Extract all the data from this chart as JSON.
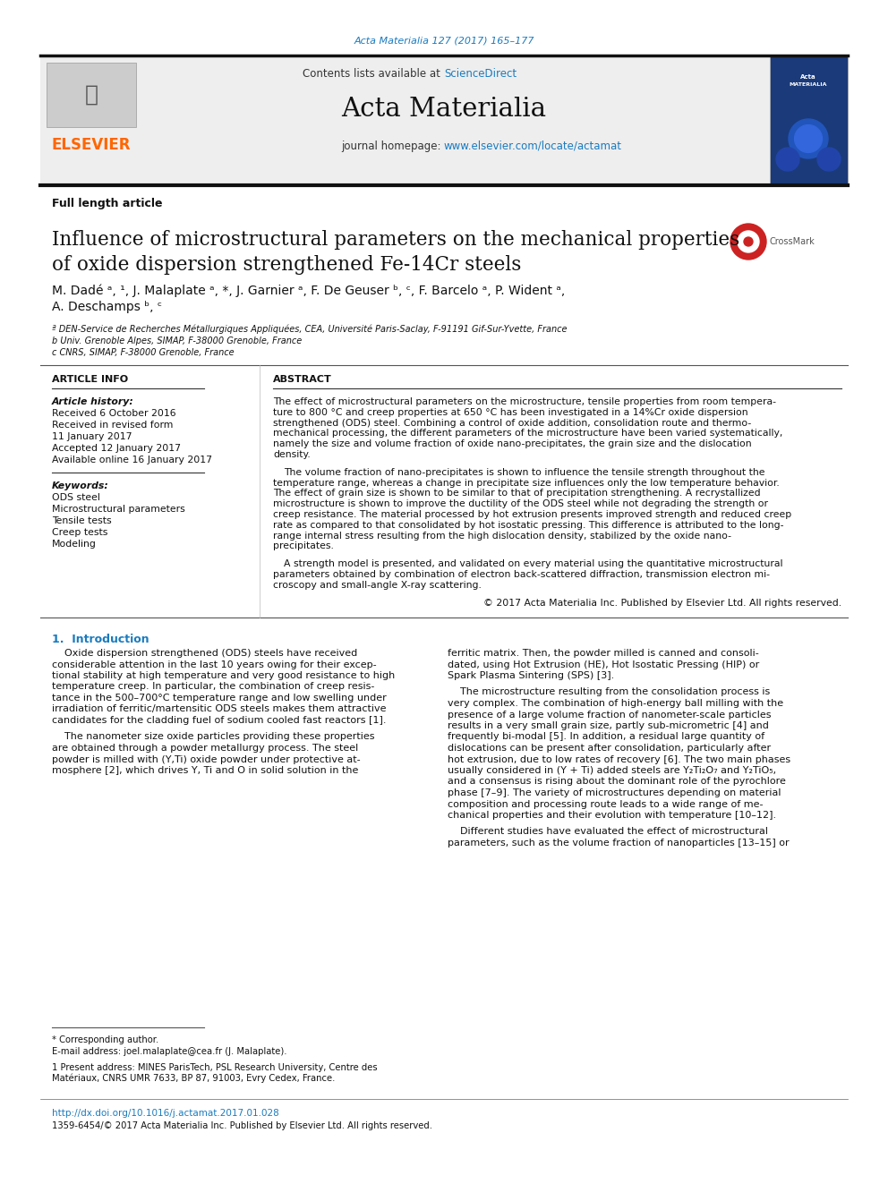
{
  "page_title": "Acta Materialia 127 (2017) 165–177",
  "journal_name": "Acta Materialia",
  "contents_text": "Contents lists available at ScienceDirect",
  "sciencedirect_text": "ScienceDirect",
  "homepage_url": "www.elsevier.com/locate/actamat",
  "article_type": "Full length article",
  "paper_title_line1": "Influence of microstructural parameters on the mechanical properties",
  "paper_title_line2": "of oxide dispersion strengthened Fe-14Cr steels",
  "affil_a": "ª DEN-Service de Recherches Métallurgiques Appliquées, CEA, Université Paris-Saclay, F-91191 Gif-Sur-Yvette, France",
  "affil_b": "b Univ. Grenoble Alpes, SIMAP, F-38000 Grenoble, France",
  "affil_c": "c CNRS, SIMAP, F-38000 Grenoble, France",
  "keywords": [
    "ODS steel",
    "Microstructural parameters",
    "Tensile tests",
    "Creep tests",
    "Modeling"
  ],
  "abstract_lines": [
    "The effect of microstructural parameters on the microstructure, tensile properties from room tempera-",
    "ture to 800 °C and creep properties at 650 °C has been investigated in a 14%Cr oxide dispersion",
    "strengthened (ODS) steel. Combining a control of oxide addition, consolidation route and thermo-",
    "mechanical processing, the different parameters of the microstructure have been varied systematically,",
    "namely the size and volume fraction of oxide nano-precipitates, the grain size and the dislocation",
    "density."
  ],
  "abstract_lines2": [
    "The volume fraction of nano-precipitates is shown to influence the tensile strength throughout the",
    "temperature range, whereas a change in precipitate size influences only the low temperature behavior.",
    "The effect of grain size is shown to be similar to that of precipitation strengthening. A recrystallized",
    "microstructure is shown to improve the ductility of the ODS steel while not degrading the strength or",
    "creep resistance. The material processed by hot extrusion presents improved strength and reduced creep",
    "rate as compared to that consolidated by hot isostatic pressing. This difference is attributed to the long-",
    "range internal stress resulting from the high dislocation density, stabilized by the oxide nano-",
    "precipitates."
  ],
  "abstract_lines3": [
    "A strength model is presented, and validated on every material using the quantitative microstructural",
    "parameters obtained by combination of electron back-scattered diffraction, transmission electron mi-",
    "croscopy and small-angle X-ray scattering."
  ],
  "abstract_copyright": "© 2017 Acta Materialia Inc. Published by Elsevier Ltd. All rights reserved.",
  "intro_col1_lines1": [
    "Oxide dispersion strengthened (ODS) steels have received",
    "considerable attention in the last 10 years owing for their excep-",
    "tional stability at high temperature and very good resistance to high",
    "temperature creep. In particular, the combination of creep resis-",
    "tance in the 500–700°C temperature range and low swelling under",
    "irradiation of ferritic/martensitic ODS steels makes them attractive",
    "candidates for the cladding fuel of sodium cooled fast reactors [1]."
  ],
  "intro_col1_lines2": [
    "The nanometer size oxide particles providing these properties",
    "are obtained through a powder metallurgy process. The steel",
    "powder is milled with (Y,Ti) oxide powder under protective at-",
    "mosphere [2], which drives Y, Ti and O in solid solution in the"
  ],
  "intro_col2_lines1": [
    "ferritic matrix. Then, the powder milled is canned and consoli-",
    "dated, using Hot Extrusion (HE), Hot Isostatic Pressing (HIP) or",
    "Spark Plasma Sintering (SPS) [3]."
  ],
  "intro_col2_lines2": [
    "The microstructure resulting from the consolidation process is",
    "very complex. The combination of high-energy ball milling with the",
    "presence of a large volume fraction of nanometer-scale particles",
    "results in a very small grain size, partly sub-micrometric [4] and",
    "frequently bi-modal [5]. In addition, a residual large quantity of",
    "dislocations can be present after consolidation, particularly after",
    "hot extrusion, due to low rates of recovery [6]. The two main phases",
    "usually considered in (Y + Ti) added steels are Y₂Ti₂O₇ and Y₂TiO₅,",
    "and a consensus is rising about the dominant role of the pyrochlore",
    "phase [7–9]. The variety of microstructures depending on material",
    "composition and processing route leads to a wide range of me-",
    "chanical properties and their evolution with temperature [10–12]."
  ],
  "intro_col2_lines3": [
    "Different studies have evaluated the effect of microstructural",
    "parameters, such as the volume fraction of nanoparticles [13–15] or"
  ],
  "footnote_corresponding": "* Corresponding author.",
  "footnote_email": "E-mail address: joel.malaplate@cea.fr (J. Malaplate).",
  "footnote_1a": "1 Present address: MINES ParisTech, PSL Research University, Centre des",
  "footnote_1b": "Matériaux, CNRS UMR 7633, BP 87, 91003, Evry Cedex, France.",
  "doi_text": "http://dx.doi.org/10.1016/j.actamat.2017.01.028",
  "issn_text": "1359-6454/© 2017 Acta Materialia Inc. Published by Elsevier Ltd. All rights reserved.",
  "bg_color": "#ffffff",
  "link_color": "#1a7bbf",
  "text_color": "#111111",
  "elsevier_color": "#ff6600"
}
